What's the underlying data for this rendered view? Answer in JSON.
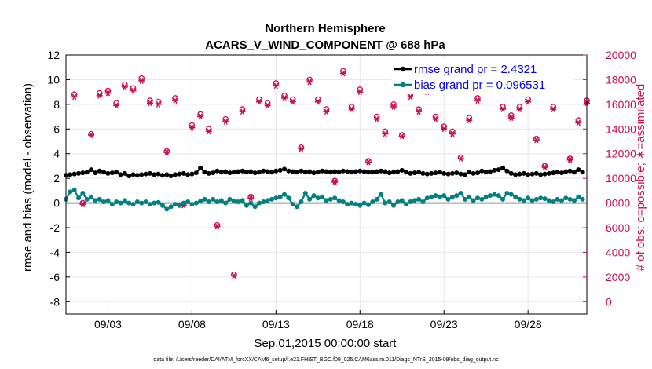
{
  "chart_data": {
    "type": "line",
    "title": "Northern Hemisphere",
    "subtitle": "ACARS_V_WIND_COMPONENT @ 688 hPa",
    "xlabel": "Sep.01,2015 00:00:00 start",
    "ylabel": "rmse and bias (model - observation)",
    "ylabel_right": "# of obs: o=possible; ∗=assimilated",
    "xlim": [
      0.5,
      31.5
    ],
    "ylim": [
      -9,
      12
    ],
    "ylim_right": [
      -1000,
      20000
    ],
    "x_ticks": [
      {
        "value": 3,
        "label": "09/03"
      },
      {
        "value": 8,
        "label": "09/08"
      },
      {
        "value": 13,
        "label": "09/13"
      },
      {
        "value": 18,
        "label": "09/18"
      },
      {
        "value": 23,
        "label": "09/23"
      },
      {
        "value": 28,
        "label": "09/28"
      }
    ],
    "y_ticks": [
      {
        "value": 12,
        "label": "12"
      },
      {
        "value": 10,
        "label": "10"
      },
      {
        "value": 8,
        "label": "8"
      },
      {
        "value": 6,
        "label": "6"
      },
      {
        "value": 4,
        "label": "4"
      },
      {
        "value": 2,
        "label": "2"
      },
      {
        "value": 0,
        "label": "0"
      },
      {
        "value": -2,
        "label": "-2"
      },
      {
        "value": -4,
        "label": "-4"
      },
      {
        "value": -6,
        "label": "-6"
      },
      {
        "value": -8,
        "label": "-8"
      }
    ],
    "y_ticks_right": [
      {
        "value": 20000,
        "label": "20000"
      },
      {
        "value": 18000,
        "label": "18000"
      },
      {
        "value": 16000,
        "label": "16000"
      },
      {
        "value": 14000,
        "label": "14000"
      },
      {
        "value": 12000,
        "label": "12000"
      },
      {
        "value": 10000,
        "label": "10000"
      },
      {
        "value": 8000,
        "label": "8000"
      },
      {
        "value": 6000,
        "label": "6000"
      },
      {
        "value": 4000,
        "label": "4000"
      },
      {
        "value": 2000,
        "label": "2000"
      },
      {
        "value": 0,
        "label": "0"
      }
    ],
    "grid": true,
    "legend_position": "top-right",
    "series": [
      {
        "name": "rmse grand pr = 2.4321",
        "color": "#000000",
        "axis": "left",
        "x": [
          0.5,
          0.75,
          1,
          1.25,
          1.5,
          1.75,
          2,
          2.25,
          2.5,
          2.75,
          3,
          3.25,
          3.5,
          3.75,
          4,
          4.25,
          4.5,
          4.75,
          5,
          5.25,
          5.5,
          5.75,
          6,
          6.25,
          6.5,
          6.75,
          7,
          7.25,
          7.5,
          7.75,
          8,
          8.25,
          8.5,
          8.75,
          9,
          9.25,
          9.5,
          9.75,
          10,
          10.25,
          10.5,
          10.75,
          11,
          11.25,
          11.5,
          11.75,
          12,
          12.25,
          12.5,
          12.75,
          13,
          13.25,
          13.5,
          13.75,
          14,
          14.25,
          14.5,
          14.75,
          15,
          15.25,
          15.5,
          15.75,
          16,
          16.25,
          16.5,
          16.75,
          17,
          17.25,
          17.5,
          17.75,
          18,
          18.25,
          18.5,
          18.75,
          19,
          19.25,
          19.5,
          19.75,
          20,
          20.25,
          20.5,
          20.75,
          21,
          21.25,
          21.5,
          21.75,
          22,
          22.25,
          22.5,
          22.75,
          23,
          23.25,
          23.5,
          23.75,
          24,
          24.25,
          24.5,
          24.75,
          25,
          25.25,
          25.5,
          25.75,
          26,
          26.25,
          26.5,
          26.75,
          27,
          27.25,
          27.5,
          27.75,
          28,
          28.25,
          28.5,
          28.75,
          29,
          29.25,
          29.5,
          29.75,
          30,
          30.25,
          30.5,
          30.75,
          31,
          31.25
        ],
        "values": [
          2.25,
          2.3,
          2.35,
          2.4,
          2.45,
          2.5,
          2.7,
          2.45,
          2.6,
          2.5,
          2.4,
          2.45,
          2.5,
          2.3,
          2.4,
          2.2,
          2.3,
          2.25,
          2.3,
          2.35,
          2.4,
          2.3,
          2.35,
          2.25,
          2.3,
          2.2,
          2.3,
          2.35,
          2.4,
          2.3,
          2.35,
          2.45,
          2.85,
          2.5,
          2.4,
          2.45,
          2.6,
          2.5,
          2.55,
          2.45,
          2.5,
          2.55,
          2.6,
          2.5,
          2.55,
          2.45,
          2.5,
          2.6,
          2.55,
          2.5,
          2.6,
          2.65,
          2.75,
          2.6,
          2.55,
          2.5,
          2.6,
          2.5,
          2.55,
          2.45,
          2.5,
          2.6,
          2.55,
          2.5,
          2.55,
          2.5,
          2.6,
          2.55,
          2.5,
          2.55,
          2.6,
          2.55,
          2.5,
          2.5,
          2.55,
          2.6,
          2.55,
          2.45,
          2.5,
          2.55,
          2.65,
          2.5,
          2.4,
          2.45,
          2.5,
          2.4,
          2.35,
          2.4,
          2.45,
          2.5,
          2.4,
          2.35,
          2.4,
          2.45,
          2.35,
          2.3,
          2.5,
          2.4,
          2.45,
          2.6,
          2.5,
          2.55,
          2.65,
          2.7,
          2.85,
          2.6,
          2.4,
          2.3,
          2.35,
          2.4,
          2.3,
          2.35,
          2.4,
          2.3,
          2.35,
          2.4,
          2.45,
          2.5,
          2.45,
          2.55,
          2.6,
          2.5,
          2.7,
          2.5
        ]
      },
      {
        "name": "bias grand pr = 0.096531",
        "color": "#008080",
        "axis": "left",
        "x": [
          0.5,
          0.75,
          1,
          1.25,
          1.5,
          1.75,
          2,
          2.25,
          2.5,
          2.75,
          3,
          3.25,
          3.5,
          3.75,
          4,
          4.25,
          4.5,
          4.75,
          5,
          5.25,
          5.5,
          5.75,
          6,
          6.25,
          6.5,
          6.75,
          7,
          7.25,
          7.5,
          7.75,
          8,
          8.25,
          8.5,
          8.75,
          9,
          9.25,
          9.5,
          9.75,
          10,
          10.25,
          10.5,
          10.75,
          11,
          11.25,
          11.5,
          11.75,
          12,
          12.25,
          12.5,
          12.75,
          13,
          13.25,
          13.5,
          13.75,
          14,
          14.25,
          14.5,
          14.75,
          15,
          15.25,
          15.5,
          15.75,
          16,
          16.25,
          16.5,
          16.75,
          17,
          17.25,
          17.5,
          17.75,
          18,
          18.25,
          18.5,
          18.75,
          19,
          19.25,
          19.5,
          19.75,
          20,
          20.25,
          20.5,
          20.75,
          21,
          21.25,
          21.5,
          21.75,
          22,
          22.25,
          22.5,
          22.75,
          23,
          23.25,
          23.5,
          23.75,
          24,
          24.25,
          24.5,
          24.75,
          25,
          25.25,
          25.5,
          25.75,
          26,
          26.25,
          26.5,
          26.75,
          27,
          27.25,
          27.5,
          27.75,
          28,
          28.25,
          28.5,
          28.75,
          29,
          29.25,
          29.5,
          29.75,
          30,
          30.25,
          30.5,
          30.75,
          31,
          31.25
        ],
        "values": [
          0.3,
          0.9,
          1.05,
          0.4,
          0.8,
          0.3,
          0.5,
          0.2,
          0.3,
          0.1,
          0.2,
          -0.1,
          0.1,
          0,
          0.2,
          0,
          -0.1,
          0.1,
          0,
          0.1,
          -0.1,
          0,
          0.05,
          -0.2,
          -0.5,
          -0.3,
          -0.1,
          -0.2,
          0,
          0.1,
          -0.1,
          0,
          0.15,
          0.3,
          0.1,
          0.3,
          0.1,
          0.2,
          0,
          0.3,
          0.15,
          0.1,
          0.2,
          -0.2,
          0,
          -0.3,
          0,
          0.1,
          0.2,
          0.3,
          0.4,
          0.5,
          0.7,
          0.4,
          -0.1,
          -0.3,
          0.1,
          0.8,
          0.3,
          0.6,
          0.4,
          0.5,
          0.2,
          0.3,
          0.4,
          0.2,
          0.1,
          -0.1,
          0,
          -0.1,
          -0.2,
          0,
          -0.15,
          0.1,
          0.3,
          0.7,
          0,
          0.1,
          -0.2,
          0.1,
          0.2,
          -0.1,
          0.1,
          0.2,
          0.3,
          0.1,
          0.4,
          0.5,
          0.6,
          0.5,
          0.6,
          0.3,
          0.5,
          0.6,
          0.8,
          0.3,
          0.5,
          0.2,
          0.4,
          0.3,
          0.5,
          0.6,
          0.7,
          0.6,
          0.3,
          0.8,
          0.7,
          0.5,
          0.3,
          0.2,
          0.4,
          0.2,
          0.3,
          0.4,
          0.35,
          0.2,
          0.1,
          0.3,
          0.2,
          0.4,
          0.3,
          0.2,
          0.5,
          0.3
        ]
      },
      {
        "name": "obs possible",
        "color": "#cc0a52",
        "axis": "right",
        "marker": "circle",
        "x": [
          1,
          1.5,
          2,
          2.5,
          3,
          3.5,
          4,
          4.5,
          5,
          5.5,
          6,
          6.5,
          7,
          7.5,
          8,
          8.5,
          9,
          9.5,
          10,
          10.5,
          11,
          11.5,
          12,
          12.5,
          13,
          13.5,
          14,
          14.5,
          15,
          15.5,
          16,
          16.5,
          17,
          17.5,
          18,
          18.5,
          19,
          19.5,
          20,
          20.5,
          21,
          21.5,
          22,
          22.5,
          23,
          23.5,
          24,
          24.5,
          25,
          25.5,
          26,
          26.5,
          27,
          27.5,
          28,
          28.5,
          29,
          29.5,
          30,
          30.5,
          31,
          31.5
        ],
        "values": [
          16800,
          8000,
          13600,
          16900,
          17100,
          16100,
          17600,
          17300,
          18100,
          16300,
          16200,
          12200,
          16500,
          7900,
          14300,
          15200,
          14000,
          6200,
          14800,
          2200,
          15600,
          8500,
          16400,
          16100,
          17700,
          16700,
          16400,
          12500,
          18000,
          16400,
          15600,
          9800,
          18700,
          15800,
          17200,
          11400,
          15000,
          13800,
          16000,
          13500,
          16800,
          15600,
          17200,
          15000,
          14200,
          13800,
          11700,
          14900,
          16500,
          17400,
          17500,
          15800,
          15100,
          15800,
          16400,
          13200,
          11000,
          15800,
          17700,
          11600,
          14700,
          16300
        ],
        "values_compressed": false
      },
      {
        "name": "obs assimilated",
        "color": "#cc0a52",
        "axis": "right",
        "marker": "star",
        "x": [
          1,
          1.5,
          2,
          2.5,
          3,
          3.5,
          4,
          4.5,
          5,
          5.5,
          6,
          6.5,
          7,
          7.5,
          8,
          8.5,
          9,
          9.5,
          10,
          10.5,
          11,
          11.5,
          12,
          12.5,
          13,
          13.5,
          14,
          14.5,
          15,
          15.5,
          16,
          16.5,
          17,
          17.5,
          18,
          18.5,
          19,
          19.5,
          20,
          20.5,
          21,
          21.5,
          22,
          22.5,
          23,
          23.5,
          24,
          24.5,
          25,
          25.5,
          26,
          26.5,
          27,
          27.5,
          28,
          28.5,
          29,
          29.5,
          30,
          30.5,
          31,
          31.5
        ],
        "values": [
          16600,
          7900,
          13500,
          16700,
          16900,
          15900,
          17400,
          17100,
          17900,
          16100,
          16000,
          12100,
          16300,
          7800,
          14100,
          15000,
          13800,
          6100,
          14600,
          2100,
          15400,
          8400,
          16200,
          15900,
          17500,
          16500,
          16200,
          12400,
          17800,
          16200,
          15400,
          9700,
          18500,
          15600,
          17000,
          11300,
          14800,
          13600,
          15800,
          13400,
          16600,
          15400,
          17000,
          14800,
          14000,
          13600,
          11600,
          14700,
          16300,
          17200,
          17300,
          15600,
          14900,
          15600,
          16200,
          13100,
          10900,
          15600,
          17500,
          11500,
          14500,
          16100
        ]
      }
    ]
  },
  "footer_text": "data file: /Users/raeder/DAI/ATM_forcXX/CAM6_setup/f.e21.FHIST_BGC.f09_025.CAM6assim.011/Diags_NTrS_2015-09/obs_diag_output.nc",
  "legend": {
    "rmse_label": "rmse grand pr = 2.4321",
    "bias_label": "bias grand pr = 0.096531"
  },
  "colors": {
    "rmse": "#000000",
    "bias": "#008080",
    "obs": "#cc0a52",
    "zero_line": "#999999",
    "grid": "#e6e6e6"
  }
}
